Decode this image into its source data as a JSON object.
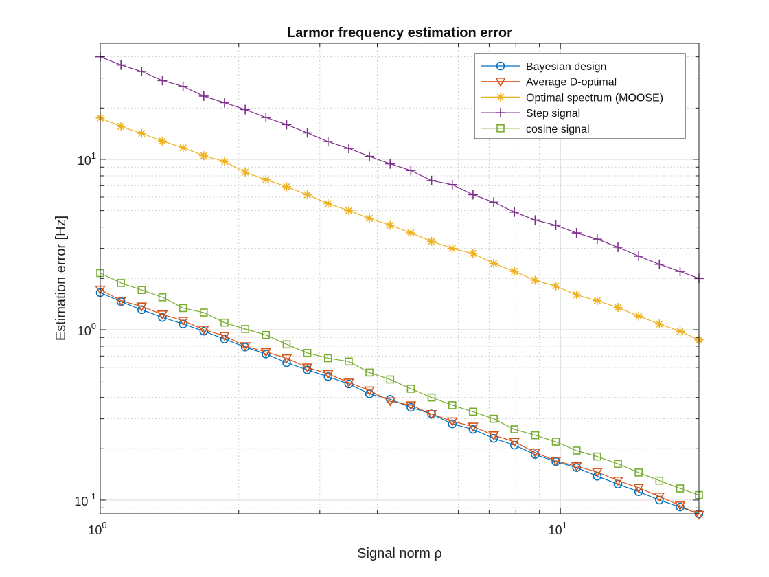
{
  "chart_data": {
    "type": "line",
    "title": "Larmor frequency estimation error",
    "xlabel": "Signal norm ρ",
    "ylabel": "Estimation error [Hz]",
    "xscale": "log",
    "yscale": "log",
    "xlim": [
      1,
      20
    ],
    "ylim": [
      0.083,
      48
    ],
    "grid": true,
    "legend_location": "top-right",
    "x_tick_labels": [
      {
        "base": "10",
        "exp": "0"
      },
      {
        "base": "10",
        "exp": "1"
      }
    ],
    "y_tick_labels": [
      {
        "base": "10",
        "exp": "-1"
      },
      {
        "base": "10",
        "exp": "0"
      },
      {
        "base": "10",
        "exp": "1"
      }
    ],
    "x": [
      1.0,
      1.1092,
      1.2303,
      1.3646,
      1.5136,
      1.6788,
      1.8621,
      2.0654,
      2.2909,
      2.541,
      2.8184,
      3.1261,
      3.4674,
      3.8459,
      4.2658,
      4.7315,
      5.2481,
      5.8211,
      6.4565,
      7.1614,
      7.9433,
      8.8105,
      9.7724,
      10.8393,
      12.0227,
      13.3352,
      14.7911,
      16.4059,
      18.197,
      20.0
    ],
    "series": [
      {
        "name": "Bayesian design",
        "color": "#0072BD",
        "marker": "circle",
        "values": [
          1.65,
          1.46,
          1.31,
          1.18,
          1.08,
          0.98,
          0.88,
          0.79,
          0.72,
          0.64,
          0.58,
          0.53,
          0.48,
          0.42,
          0.39,
          0.35,
          0.32,
          0.28,
          0.26,
          0.23,
          0.21,
          0.185,
          0.168,
          0.155,
          0.138,
          0.124,
          0.112,
          0.1,
          0.091,
          0.083
        ]
      },
      {
        "name": "Average D-optimal",
        "color": "#D95319",
        "marker": "triangle-down",
        "values": [
          1.72,
          1.48,
          1.37,
          1.23,
          1.13,
          1.0,
          0.92,
          0.8,
          0.74,
          0.68,
          0.6,
          0.55,
          0.49,
          0.44,
          0.38,
          0.36,
          0.32,
          0.29,
          0.27,
          0.24,
          0.22,
          0.19,
          0.17,
          0.158,
          0.146,
          0.13,
          0.118,
          0.105,
          0.093,
          0.082
        ]
      },
      {
        "name": "Optimal spectrum (MOOSE)",
        "color": "#EDB120",
        "marker": "asterisk",
        "values": [
          17.5,
          15.6,
          14.2,
          12.8,
          11.7,
          10.5,
          9.7,
          8.4,
          7.6,
          6.9,
          6.2,
          5.5,
          5.0,
          4.5,
          4.1,
          3.7,
          3.3,
          3.0,
          2.8,
          2.45,
          2.2,
          1.95,
          1.8,
          1.6,
          1.48,
          1.35,
          1.2,
          1.08,
          0.98,
          0.87
        ]
      },
      {
        "name": "Step signal",
        "color": "#7E2F8E",
        "marker": "plus",
        "values": [
          40.0,
          35.8,
          32.8,
          29.0,
          26.8,
          23.5,
          21.5,
          19.6,
          17.6,
          16.0,
          14.3,
          12.7,
          11.6,
          10.4,
          9.4,
          8.6,
          7.5,
          7.1,
          6.2,
          5.6,
          4.9,
          4.4,
          4.1,
          3.7,
          3.4,
          3.05,
          2.7,
          2.42,
          2.2,
          2.0
        ]
      },
      {
        "name": "cosine signal",
        "color": "#77AC30",
        "marker": "square",
        "values": [
          2.15,
          1.88,
          1.71,
          1.55,
          1.34,
          1.26,
          1.1,
          1.01,
          0.93,
          0.82,
          0.73,
          0.68,
          0.65,
          0.56,
          0.51,
          0.45,
          0.4,
          0.36,
          0.33,
          0.3,
          0.26,
          0.24,
          0.22,
          0.195,
          0.18,
          0.163,
          0.145,
          0.13,
          0.117,
          0.107
        ]
      }
    ]
  }
}
